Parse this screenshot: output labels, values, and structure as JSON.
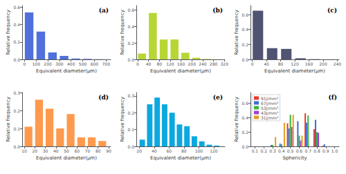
{
  "chart_data": [
    {
      "type": "bar",
      "annotation": "(a)",
      "x": [
        40,
        140,
        240,
        340,
        440,
        540,
        640
      ],
      "values": [
        0.54,
        0.32,
        0.08,
        0.04,
        0.01,
        0.005,
        0.002
      ],
      "xlim": [
        -20,
        740
      ],
      "ylim": [
        0,
        0.62
      ],
      "xticks": [
        0,
        100,
        200,
        300,
        400,
        500,
        600,
        700
      ],
      "yticks": [
        {
          "value": 0,
          "label": "0.0"
        },
        0.2,
        0.4,
        0.6
      ],
      "xlabel": "Equivalent diameter(μm)",
      "ylabel": "Relative frequency",
      "grid": false
    },
    {
      "type": "bar",
      "annotation": "(b)",
      "x": [
        16,
        56,
        96,
        136,
        176,
        216,
        256,
        296
      ],
      "values": [
        0.07,
        0.56,
        0.24,
        0.24,
        0.08,
        0.02,
        0.005,
        0.001
      ],
      "xlim": [
        -5,
        322
      ],
      "ylim": [
        0,
        0.65
      ],
      "xticks": [
        0,
        40,
        80,
        120,
        160,
        200,
        240,
        280,
        320
      ],
      "yticks": [
        {
          "value": 0,
          "label": "0.0"
        },
        0.2,
        0.4,
        0.6
      ],
      "xlabel": "Equivalent diameter(μm)",
      "ylabel": "Relative frequency",
      "grid": false
    },
    {
      "type": "bar",
      "annotation": "(c)",
      "x": [
        16,
        56,
        96,
        136,
        176,
        216
      ],
      "values": [
        0.65,
        0.15,
        0.14,
        0.015,
        0.003,
        0.001
      ],
      "xlim": [
        -5,
        245
      ],
      "ylim": [
        0,
        0.72
      ],
      "xticks": [
        0,
        40,
        80,
        120,
        160,
        200,
        240
      ],
      "yticks": [
        {
          "value": 0,
          "label": "0.0"
        },
        0.2,
        0.4,
        0.6
      ],
      "xlabel": "Equivalent diameter(μm)",
      "ylabel": "Relative frequency",
      "grid": false
    },
    {
      "type": "bar",
      "annotation": "(d)",
      "x": [
        14,
        24,
        34,
        44,
        54,
        64,
        74,
        84
      ],
      "values": [
        0.11,
        0.26,
        0.21,
        0.1,
        0.18,
        0.05,
        0.05,
        0.03
      ],
      "xlim": [
        8,
        92
      ],
      "ylim": [
        0,
        0.3
      ],
      "xticks": [
        10,
        20,
        30,
        40,
        50,
        60,
        70,
        80,
        90
      ],
      "yticks": [
        {
          "value": 0,
          "label": "0.0"
        },
        0.1,
        0.2,
        0.3
      ],
      "xlabel": "Equivalent diameter(μm)",
      "ylabel": "Relative frequency",
      "grid": false
    },
    {
      "type": "bar",
      "annotation": "(e)",
      "x": [
        24,
        34,
        44,
        54,
        64,
        74,
        84,
        94,
        104,
        114,
        124
      ],
      "values": [
        0.04,
        0.25,
        0.29,
        0.25,
        0.2,
        0.13,
        0.12,
        0.06,
        0.03,
        0.01,
        0.005
      ],
      "xlim": [
        16,
        135
      ],
      "ylim": [
        0,
        0.32
      ],
      "xticks": [
        20,
        40,
        60,
        80,
        100,
        120
      ],
      "yticks": [
        {
          "value": 0,
          "label": "0.0"
        },
        0.1,
        0.2,
        0.3
      ],
      "xlabel": "Equivalent diameter(μm)",
      "ylabel": "Relative frequency",
      "grid": false
    },
    {
      "type": "bar",
      "annotation": "(f)",
      "x": [
        0.3,
        0.4,
        0.5,
        0.6,
        0.7,
        0.8,
        0.9
      ],
      "series": [
        {
          "name": "91J/mm³",
          "color": "#e8392a",
          "values": [
            0.0,
            0.0,
            0.32,
            0.0,
            0.46,
            0.24,
            0.01
          ]
        },
        {
          "name": "67J/mm³",
          "color": "#3d6fd4",
          "values": [
            0.02,
            0.04,
            0.25,
            0.35,
            0.33,
            0.37,
            0.03
          ]
        },
        {
          "name": "53J/mm³",
          "color": "#3ab53a",
          "values": [
            0.02,
            0.03,
            0.44,
            0.15,
            0.43,
            0.2,
            0.0
          ]
        },
        {
          "name": "43J/mm³",
          "color": "#a040cc",
          "values": [
            0.0,
            0.0,
            0.27,
            0.08,
            0.0,
            0.19,
            0.0
          ]
        },
        {
          "name": "31J/mm³",
          "color": "#e0a020",
          "values": [
            0.13,
            0.33,
            0.44,
            0.15,
            0.0,
            0.0,
            0.0
          ]
        }
      ],
      "xlim": [
        0.05,
        1.05
      ],
      "ylim": [
        0,
        0.75
      ],
      "xticks": [
        0.1,
        0.2,
        0.3,
        0.4,
        0.5,
        0.6,
        0.7,
        0.8,
        0.9,
        {
          "value": 1,
          "label": "1.0"
        }
      ],
      "yticks": [
        {
          "value": 0,
          "label": "0.0"
        },
        0.2,
        0.4,
        0.6
      ],
      "xlabel": "Sphericity",
      "ylabel": "Relative frequency",
      "grid": false,
      "legend": "upper left"
    }
  ]
}
